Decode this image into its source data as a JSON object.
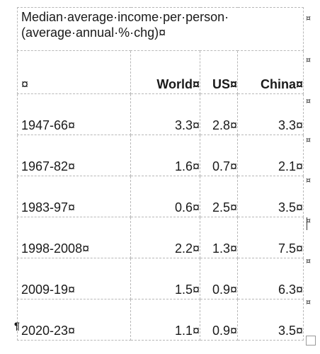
{
  "table": {
    "title": "Median·average·income·per·person· (average·annual·%·chg)¤",
    "columns": [
      "¤",
      "World¤",
      "US¤",
      "China¤"
    ],
    "rows": [
      {
        "period": "1947-66¤",
        "world": "3.3¤",
        "us": "2.8¤",
        "china": "3.3¤"
      },
      {
        "period": "1967-82¤",
        "world": "1.6¤",
        "us": "0.7¤",
        "china": "2.1¤"
      },
      {
        "period": "1983-97¤",
        "world": "0.6¤",
        "us": "2.5¤",
        "china": "3.5¤"
      },
      {
        "period": "1998-2008¤",
        "world": "2.2¤",
        "us": "1.3¤",
        "china": "7.5¤"
      },
      {
        "period": "2009-19¤",
        "world": "1.5¤",
        "us": "0.9¤",
        "china": "6.3¤"
      },
      {
        "period": "2020-23¤",
        "world": "1.1¤",
        "us": "0.9¤",
        "china": "3.5¤"
      }
    ]
  },
  "marks": {
    "end_of_row": "¤",
    "paragraph": "¶"
  }
}
